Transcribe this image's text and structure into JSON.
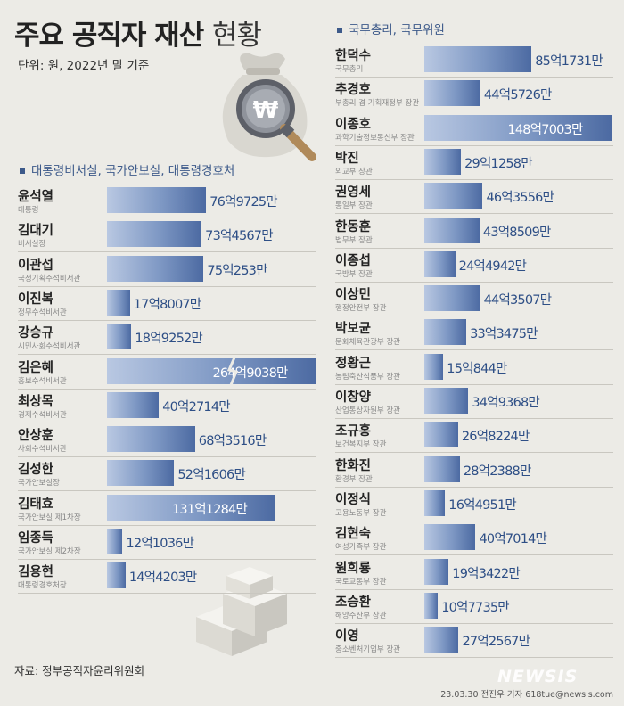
{
  "header": {
    "title_main": "주요 공직자 재산",
    "title_sub": "현황",
    "unit": "단위: 원, 2022년 말 기준"
  },
  "chart_data": [
    {
      "type": "bar",
      "title": "대통령비서실, 국가안보실, 대통령경호처",
      "value_unit": "만원",
      "categories": [
        "윤석열",
        "김대기",
        "이관섭",
        "이진복",
        "강승규",
        "김은혜",
        "최상목",
        "안상훈",
        "김성한",
        "김태효",
        "임종득",
        "김용현"
      ],
      "roles": [
        "대통령",
        "비서실장",
        "국정기획수석비서관",
        "정무수석비서관",
        "시민사회수석비서관",
        "홍보수석비서관",
        "경제수석비서관",
        "사회수석비서관",
        "국가안보실장",
        "국가안보실 제1차장",
        "국가안보실 제2차장",
        "대통령경호처장"
      ],
      "values": [
        769725,
        734567,
        750253,
        178007,
        189252,
        2649038,
        402714,
        683516,
        521606,
        1311284,
        121036,
        144203
      ],
      "labels": [
        "76억9725만",
        "73억4567만",
        "75억253만",
        "17억8007만",
        "18억9252만",
        "264억9038만",
        "40억2714만",
        "68억3516만",
        "52억1606만",
        "131억1284만",
        "12억1036만",
        "14억4203만"
      ],
      "broken_axis": [
        "김은혜"
      ]
    },
    {
      "type": "bar",
      "title": "국무총리, 국무위원",
      "value_unit": "만원",
      "categories": [
        "한덕수",
        "추경호",
        "이종호",
        "박진",
        "권영세",
        "한동훈",
        "이종섭",
        "이상민",
        "박보균",
        "정황근",
        "이창양",
        "조규홍",
        "한화진",
        "이정식",
        "김현숙",
        "원희룡",
        "조승환",
        "이영"
      ],
      "roles": [
        "국무총리",
        "부총리 겸 기획재정부 장관",
        "과학기술정보통신부 장관",
        "외교부 장관",
        "통일부 장관",
        "법무부 장관",
        "국방부 장관",
        "행정안전부 장관",
        "문화체육관광부 장관",
        "농림축산식품부 장관",
        "산업통상자원부 장관",
        "보건복지부 장관",
        "환경부 장관",
        "고용노동부 장관",
        "여성가족부 장관",
        "국토교통부 장관",
        "해양수산부 장관",
        "중소벤처기업부 장관"
      ],
      "values": [
        851731,
        445726,
        1487003,
        291258,
        463556,
        438509,
        244942,
        443507,
        333475,
        150844,
        349368,
        268224,
        282388,
        164951,
        407014,
        193422,
        107735,
        272567
      ],
      "labels": [
        "85억1731만",
        "44억5726만",
        "148억7003만",
        "29억1258만",
        "46억3556만",
        "43억8509만",
        "24억4942만",
        "44억3507만",
        "33억3475만",
        "15억844만",
        "34억9368만",
        "26억8224만",
        "28억2388만",
        "16억4951만",
        "40억7014만",
        "19억3422만",
        "10억7735만",
        "27억2567만"
      ]
    }
  ],
  "colors": {
    "bar_dark": "#4c6aa2",
    "bar_light": "#b9c8e2",
    "accent": "#3d5a8a"
  },
  "footer": {
    "source": "자료: 정부공직자윤리위원회",
    "credit": "23.03.30 전진우 기자 618tue@newsis.com",
    "logo": "NEWSIS"
  }
}
